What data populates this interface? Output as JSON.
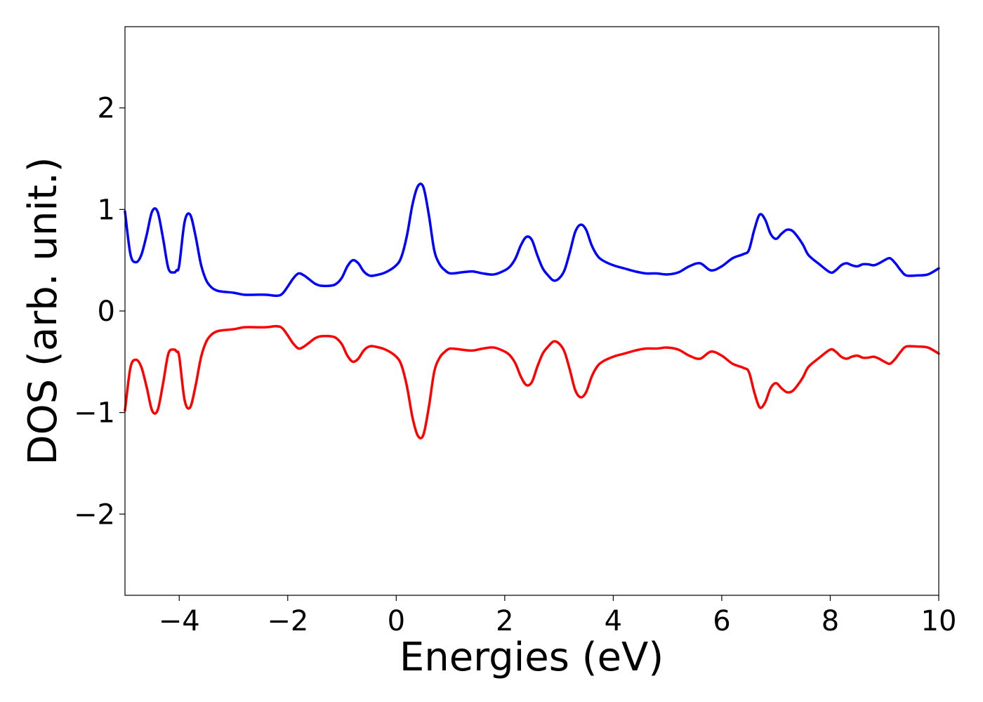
{
  "chart_data": {
    "type": "line",
    "title": "",
    "xlabel": "Energies (eV)",
    "ylabel": "DOS (arb. unit.)",
    "xlim": [
      -5,
      10
    ],
    "ylim": [
      -2.8,
      2.8
    ],
    "xticks": [
      -4,
      -2,
      0,
      2,
      4,
      6,
      8,
      10
    ],
    "yticks": [
      -2,
      -1,
      0,
      1,
      2
    ],
    "xtick_labels": [
      "−4",
      "−2",
      "0",
      "2",
      "4",
      "6",
      "8",
      "10"
    ],
    "ytick_labels": [
      "−2",
      "−1",
      "0",
      "1",
      "2"
    ],
    "grid": false,
    "legend": "none",
    "series": [
      {
        "color": "#0000ff",
        "x": [
          -5.0,
          -4.9,
          -4.8,
          -4.7,
          -4.6,
          -4.5,
          -4.4,
          -4.3,
          -4.2,
          -4.1,
          -4.05,
          -4.0,
          -3.9,
          -3.8,
          -3.7,
          -3.6,
          -3.5,
          -3.4,
          -3.3,
          -3.2,
          -3.0,
          -2.8,
          -2.6,
          -2.4,
          -2.2,
          -2.1,
          -2.0,
          -1.9,
          -1.8,
          -1.7,
          -1.6,
          -1.5,
          -1.4,
          -1.2,
          -1.1,
          -1.0,
          -0.9,
          -0.8,
          -0.7,
          -0.6,
          -0.5,
          -0.4,
          -0.2,
          0.0,
          0.1,
          0.2,
          0.3,
          0.4,
          0.5,
          0.6,
          0.7,
          0.8,
          0.9,
          1.0,
          1.2,
          1.4,
          1.6,
          1.8,
          2.0,
          2.1,
          2.2,
          2.3,
          2.4,
          2.5,
          2.6,
          2.7,
          2.8,
          2.9,
          3.0,
          3.1,
          3.2,
          3.3,
          3.4,
          3.5,
          3.6,
          3.7,
          3.8,
          4.0,
          4.2,
          4.4,
          4.6,
          4.8,
          5.0,
          5.2,
          5.4,
          5.6,
          5.8,
          6.0,
          6.2,
          6.4,
          6.5,
          6.6,
          6.7,
          6.8,
          6.9,
          7.0,
          7.1,
          7.2,
          7.3,
          7.4,
          7.5,
          7.6,
          7.8,
          8.0,
          8.1,
          8.2,
          8.3,
          8.4,
          8.5,
          8.6,
          8.7,
          8.8,
          8.9,
          9.0,
          9.1,
          9.2,
          9.3,
          9.4,
          9.6,
          9.8,
          10.0
        ],
        "y": [
          0.98,
          0.56,
          0.48,
          0.55,
          0.75,
          0.98,
          0.98,
          0.72,
          0.42,
          0.38,
          0.4,
          0.45,
          0.88,
          0.95,
          0.74,
          0.46,
          0.3,
          0.23,
          0.2,
          0.19,
          0.18,
          0.16,
          0.16,
          0.16,
          0.15,
          0.17,
          0.24,
          0.32,
          0.37,
          0.35,
          0.31,
          0.27,
          0.25,
          0.25,
          0.27,
          0.33,
          0.44,
          0.5,
          0.47,
          0.39,
          0.35,
          0.35,
          0.38,
          0.45,
          0.54,
          0.75,
          1.05,
          1.23,
          1.22,
          0.95,
          0.6,
          0.46,
          0.4,
          0.37,
          0.38,
          0.39,
          0.37,
          0.36,
          0.4,
          0.44,
          0.52,
          0.65,
          0.73,
          0.7,
          0.55,
          0.42,
          0.35,
          0.3,
          0.32,
          0.4,
          0.58,
          0.78,
          0.85,
          0.8,
          0.65,
          0.55,
          0.5,
          0.45,
          0.42,
          0.39,
          0.37,
          0.37,
          0.36,
          0.38,
          0.44,
          0.47,
          0.4,
          0.44,
          0.52,
          0.56,
          0.6,
          0.8,
          0.95,
          0.9,
          0.76,
          0.71,
          0.76,
          0.8,
          0.79,
          0.73,
          0.65,
          0.55,
          0.46,
          0.38,
          0.4,
          0.45,
          0.47,
          0.45,
          0.44,
          0.46,
          0.46,
          0.45,
          0.47,
          0.5,
          0.52,
          0.47,
          0.4,
          0.35,
          0.35,
          0.36,
          0.42
        ]
      },
      {
        "color": "#ff0000",
        "x": [
          -5.0,
          -4.9,
          -4.8,
          -4.7,
          -4.6,
          -4.5,
          -4.4,
          -4.3,
          -4.2,
          -4.1,
          -4.05,
          -4.0,
          -3.9,
          -3.8,
          -3.7,
          -3.6,
          -3.5,
          -3.4,
          -3.3,
          -3.2,
          -3.0,
          -2.8,
          -2.6,
          -2.4,
          -2.2,
          -2.1,
          -2.0,
          -1.9,
          -1.8,
          -1.7,
          -1.6,
          -1.5,
          -1.4,
          -1.2,
          -1.1,
          -1.0,
          -0.9,
          -0.8,
          -0.7,
          -0.6,
          -0.5,
          -0.4,
          -0.2,
          0.0,
          0.1,
          0.2,
          0.3,
          0.4,
          0.5,
          0.6,
          0.7,
          0.8,
          0.9,
          1.0,
          1.2,
          1.4,
          1.6,
          1.8,
          2.0,
          2.1,
          2.2,
          2.3,
          2.4,
          2.5,
          2.6,
          2.7,
          2.8,
          2.9,
          3.0,
          3.1,
          3.2,
          3.3,
          3.4,
          3.5,
          3.6,
          3.7,
          3.8,
          4.0,
          4.2,
          4.4,
          4.6,
          4.8,
          5.0,
          5.2,
          5.4,
          5.6,
          5.8,
          6.0,
          6.2,
          6.4,
          6.5,
          6.6,
          6.7,
          6.8,
          6.9,
          7.0,
          7.1,
          7.2,
          7.3,
          7.4,
          7.5,
          7.6,
          7.8,
          8.0,
          8.1,
          8.2,
          8.3,
          8.4,
          8.5,
          8.6,
          8.7,
          8.8,
          8.9,
          9.0,
          9.1,
          9.2,
          9.3,
          9.4,
          9.6,
          9.8,
          10.0
        ],
        "y": [
          -0.98,
          -0.56,
          -0.48,
          -0.55,
          -0.75,
          -0.98,
          -0.98,
          -0.72,
          -0.42,
          -0.38,
          -0.4,
          -0.45,
          -0.88,
          -0.95,
          -0.74,
          -0.46,
          -0.3,
          -0.23,
          -0.2,
          -0.19,
          -0.18,
          -0.16,
          -0.16,
          -0.16,
          -0.15,
          -0.17,
          -0.24,
          -0.32,
          -0.37,
          -0.35,
          -0.31,
          -0.27,
          -0.25,
          -0.25,
          -0.27,
          -0.33,
          -0.44,
          -0.5,
          -0.47,
          -0.39,
          -0.35,
          -0.35,
          -0.38,
          -0.45,
          -0.54,
          -0.75,
          -1.05,
          -1.23,
          -1.22,
          -0.95,
          -0.6,
          -0.46,
          -0.4,
          -0.37,
          -0.38,
          -0.39,
          -0.37,
          -0.36,
          -0.4,
          -0.44,
          -0.52,
          -0.65,
          -0.73,
          -0.7,
          -0.55,
          -0.42,
          -0.35,
          -0.3,
          -0.32,
          -0.4,
          -0.58,
          -0.78,
          -0.85,
          -0.8,
          -0.65,
          -0.55,
          -0.5,
          -0.45,
          -0.42,
          -0.39,
          -0.37,
          -0.37,
          -0.36,
          -0.38,
          -0.44,
          -0.47,
          -0.4,
          -0.44,
          -0.52,
          -0.56,
          -0.6,
          -0.8,
          -0.95,
          -0.9,
          -0.76,
          -0.71,
          -0.76,
          -0.8,
          -0.79,
          -0.73,
          -0.65,
          -0.55,
          -0.46,
          -0.38,
          -0.4,
          -0.45,
          -0.47,
          -0.45,
          -0.44,
          -0.46,
          -0.46,
          -0.45,
          -0.47,
          -0.5,
          -0.52,
          -0.47,
          -0.4,
          -0.35,
          -0.35,
          -0.36,
          -0.42
        ]
      }
    ]
  }
}
